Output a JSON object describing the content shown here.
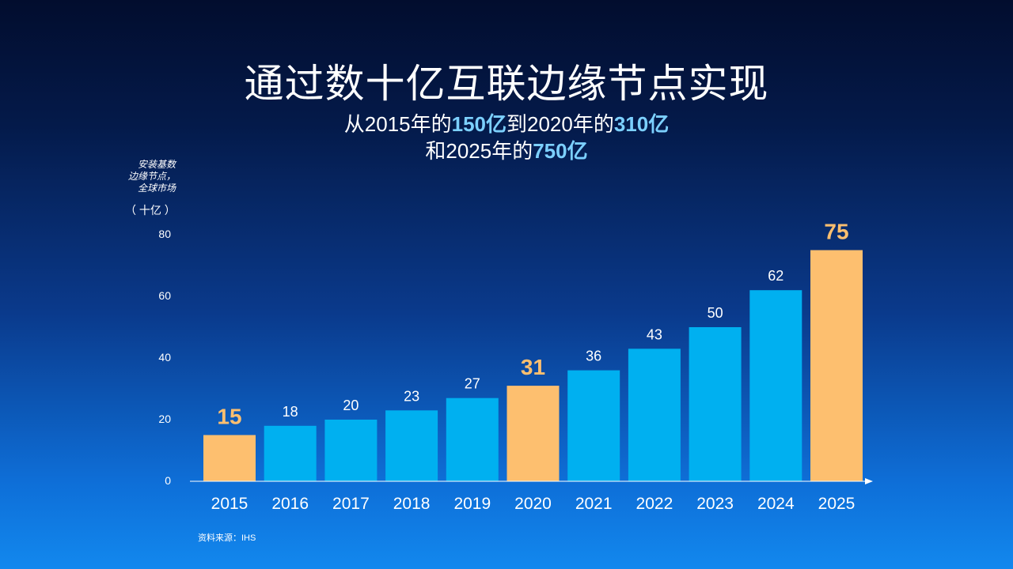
{
  "header": {
    "title": "通过数十亿互联边缘节点实现",
    "sub1_prefix": "从2015年的",
    "sub1_hl1": "150亿",
    "sub1_mid": "到2020年的",
    "sub1_hl2": "310亿",
    "sub2_prefix": "和2025年的",
    "sub2_hl": "750亿"
  },
  "chart_data": {
    "type": "bar",
    "title": "通过数十亿互联边缘节点实现",
    "ylabel_lines": [
      "安装基数",
      "边缘节点，",
      "全球市场"
    ],
    "yunit": "（ 十亿 ）",
    "categories": [
      "2015",
      "2016",
      "2017",
      "2018",
      "2019",
      "2020",
      "2021",
      "2022",
      "2023",
      "2024",
      "2025"
    ],
    "values": [
      15,
      18,
      20,
      23,
      27,
      31,
      36,
      43,
      50,
      62,
      75
    ],
    "labels": [
      "15",
      "18",
      "20",
      "23",
      "27",
      "31",
      "36",
      "43",
      "50",
      "62",
      "75"
    ],
    "highlighted": [
      true,
      false,
      false,
      false,
      false,
      true,
      false,
      false,
      false,
      false,
      true
    ],
    "yticks": [
      0,
      20,
      40,
      60,
      80
    ],
    "ytick_labels": [
      "0",
      "20",
      "40",
      "60",
      "80"
    ],
    "ylim": [
      0,
      80
    ],
    "grid": false,
    "colors": {
      "normal": "#00b0f0",
      "highlight": "#fdbf6f",
      "axis": "#ffffff"
    }
  },
  "footer": {
    "source": "资料来源：IHS"
  }
}
